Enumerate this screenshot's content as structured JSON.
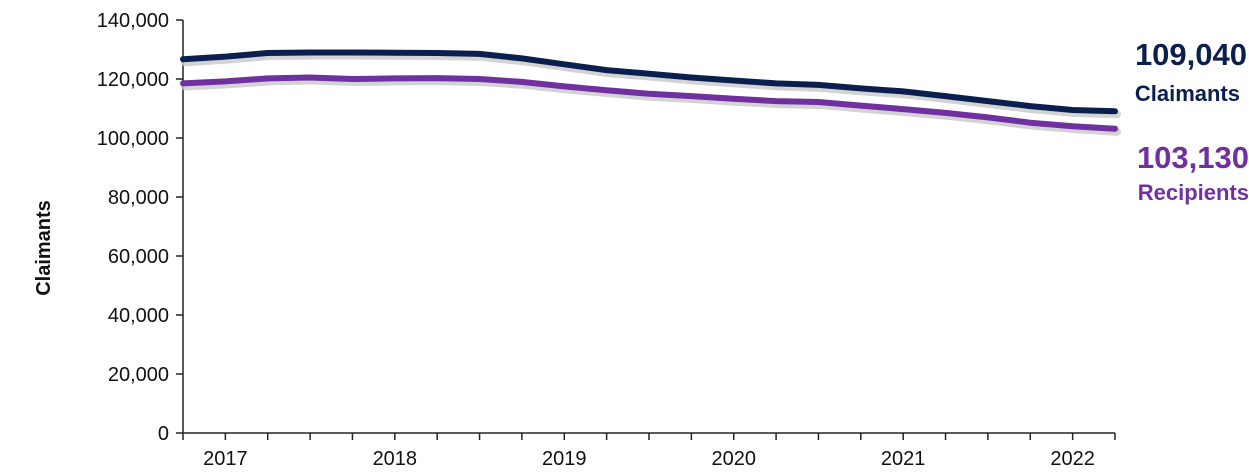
{
  "chart_data": {
    "type": "line",
    "ylabel": "Claimants",
    "xlabel": "",
    "ylim": [
      0,
      140000
    ],
    "y_ticks": [
      "0",
      "20,000",
      "40,000",
      "60,000",
      "80,000",
      "100,000",
      "120,000",
      "140,000"
    ],
    "y_tick_values": [
      0,
      20000,
      40000,
      60000,
      80000,
      100000,
      120000,
      140000
    ],
    "x_ticks": [
      "2017",
      "2018",
      "2019",
      "2020",
      "2021",
      "2022"
    ],
    "x_tick_values": [
      2017,
      2018,
      2019,
      2020,
      2021,
      2022
    ],
    "xlim": [
      2016.75,
      2022.25
    ],
    "grid": false,
    "series": [
      {
        "name": "Claimants",
        "color": "#0b1f4f",
        "end_value": "109,040",
        "end_label": "Claimants",
        "x": [
          2016.75,
          2017.0,
          2017.25,
          2017.5,
          2017.75,
          2018.0,
          2018.25,
          2018.5,
          2018.75,
          2019.0,
          2019.25,
          2019.5,
          2019.75,
          2020.0,
          2020.25,
          2020.5,
          2020.75,
          2021.0,
          2021.25,
          2021.5,
          2021.75,
          2022.0,
          2022.25
        ],
        "values": [
          126700,
          127600,
          128800,
          129000,
          129000,
          128900,
          128800,
          128500,
          127000,
          125000,
          123000,
          121800,
          120500,
          119500,
          118500,
          118000,
          116800,
          115800,
          114200,
          112500,
          110800,
          109500,
          109040
        ]
      },
      {
        "name": "Recipients",
        "color": "#7030a0",
        "end_value": "103,130",
        "end_label": "Recipients",
        "x": [
          2016.75,
          2017.0,
          2017.25,
          2017.5,
          2017.75,
          2018.0,
          2018.25,
          2018.5,
          2018.75,
          2019.0,
          2019.25,
          2019.5,
          2019.75,
          2020.0,
          2020.25,
          2020.5,
          2020.75,
          2021.0,
          2021.25,
          2021.5,
          2021.75,
          2022.0,
          2022.25
        ],
        "values": [
          118500,
          119200,
          120200,
          120500,
          120000,
          120200,
          120300,
          120000,
          119000,
          117500,
          116200,
          115000,
          114200,
          113300,
          112500,
          112200,
          111000,
          109800,
          108500,
          107000,
          105200,
          104000,
          103130
        ]
      }
    ]
  }
}
